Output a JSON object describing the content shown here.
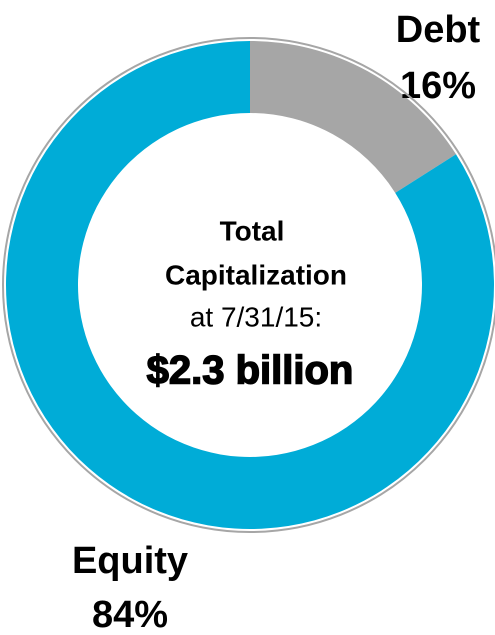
{
  "chart_data": {
    "type": "donut",
    "categories": [
      "Debt",
      "Equity"
    ],
    "values": [
      16,
      84
    ],
    "value_labels": [
      "16%",
      "84%"
    ],
    "colors": [
      "#a6a6a6",
      "#00acd7"
    ],
    "center_lines": [
      "Total",
      "Capitalization",
      "at 7/31/15:"
    ],
    "center_value": "$2.3 billion"
  }
}
